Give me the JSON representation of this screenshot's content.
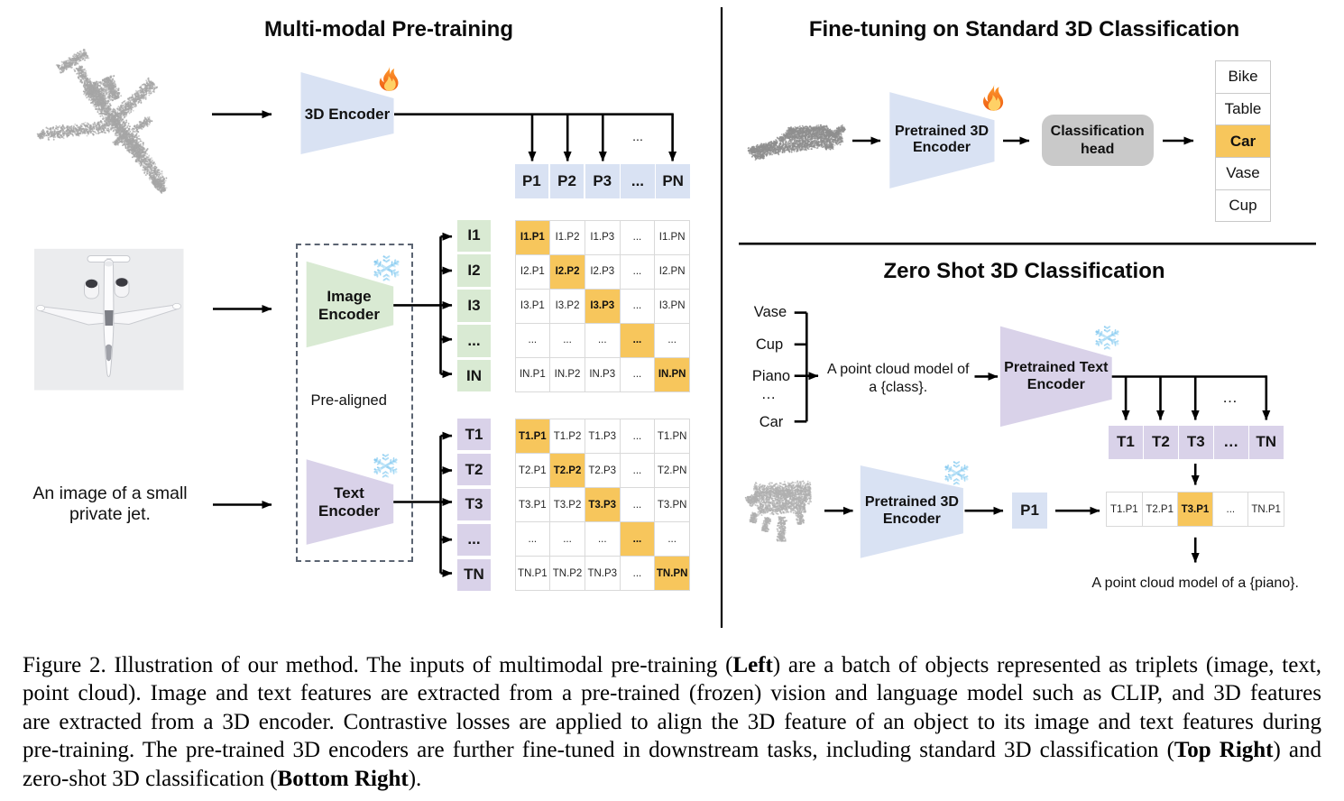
{
  "colors": {
    "blue": "#d9e2f3",
    "green": "#d9ead3",
    "purple": "#d9d2e9",
    "orange": "#f7c65c",
    "gray_box": "#c9c9c9",
    "line": "#000000",
    "grid_border": "#d9d9d9"
  },
  "panels": {
    "pretraining": {
      "title": "Multi-modal Pre-training",
      "encoder_3d_label": "3D Encoder",
      "image_encoder_label": "Image\nEncoder",
      "text_encoder_label": "Text\nEncoder",
      "prealigned_label": "Pre-aligned",
      "jet_text": "An image of a small\nprivate jet.",
      "ellipsis_top": "...",
      "p_row": [
        "P1",
        "P2",
        "P3",
        "...",
        "PN"
      ],
      "i_labels": [
        "I1",
        "I2",
        "I3",
        "...",
        "IN"
      ],
      "t_labels": [
        "T1",
        "T2",
        "T3",
        "...",
        "TN"
      ],
      "i_matrix": [
        [
          "I1.P1",
          "I1.P2",
          "I1.P3",
          "...",
          "I1.PN"
        ],
        [
          "I2.P1",
          "I2.P2",
          "I2.P3",
          "...",
          "I2.PN"
        ],
        [
          "I3.P1",
          "I3.P2",
          "I3.P3",
          "...",
          "I3.PN"
        ],
        [
          "...",
          "...",
          "...",
          "...",
          "..."
        ],
        [
          "IN.P1",
          "IN.P2",
          "IN.P3",
          "...",
          "IN.PN"
        ]
      ],
      "t_matrix": [
        [
          "T1.P1",
          "T1.P2",
          "T1.P3",
          "...",
          "T1.PN"
        ],
        [
          "T2.P1",
          "T2.P2",
          "T2.P3",
          "...",
          "T2.PN"
        ],
        [
          "T3.P1",
          "T3.P2",
          "T3.P3",
          "...",
          "T3.PN"
        ],
        [
          "...",
          "...",
          "...",
          "...",
          "..."
        ],
        [
          "TN.P1",
          "TN.P2",
          "TN.P3",
          "...",
          "TN.PN"
        ]
      ],
      "icons": {
        "trainable": "fire-emoji",
        "frozen": "snowflake-emoji"
      }
    },
    "finetune": {
      "title": "Fine-tuning on Standard 3D Classification",
      "encoder_label": "Pretrained 3D\nEncoder",
      "head_label": "Classification\nhead",
      "classes": [
        "Bike",
        "Table",
        "Car",
        "Vase",
        "Cup"
      ],
      "highlight_class": "Car",
      "highlight_index": 2
    },
    "zeroshot": {
      "title": "Zero Shot 3D Classification",
      "classes": [
        "Vase",
        "Cup",
        "Piano",
        "…",
        "Car"
      ],
      "prompt_text": "A point cloud model of\na {class}.",
      "text_encoder_label": "Pretrained Text\nEncoder",
      "encoder_3d_label": "Pretrained 3D\nEncoder",
      "p1_label": "P1",
      "t_row": [
        "T1",
        "T2",
        "T3",
        "…",
        "TN"
      ],
      "ellipsis_top": "…",
      "sim_row": [
        "T1.P1",
        "T2.P1",
        "T3.P1",
        "...",
        "TN.P1"
      ],
      "sim_highlight_index": 2,
      "result_text": "A point cloud model of a {piano}."
    }
  },
  "caption": {
    "lines": [
      [
        {
          "t": "Figure 2. Illustration of our method.  The inputs of multimodal pre-training ("
        },
        {
          "t": "Left",
          "b": 1
        },
        {
          "t": ") are a batch of objects represented as triplets (image, text,"
        }
      ],
      [
        {
          "t": "point cloud).  Image and text features are extracted from a pre-trained (frozen) vision and language model such as CLIP, and 3D features"
        }
      ],
      [
        {
          "t": "are extracted from a 3D encoder.  Contrastive losses are applied to align the 3D feature of an object to its image and text features during"
        }
      ],
      [
        {
          "t": "pre-training.  The pre-trained 3D encoders are further fine-tuned in downstream tasks, including standard 3D classification ("
        },
        {
          "t": "Top Right",
          "b": 1
        },
        {
          "t": ") and"
        }
      ],
      [
        {
          "t": "zero-shot 3D classification ("
        },
        {
          "t": "Bottom Right",
          "b": 1
        },
        {
          "t": ")."
        }
      ]
    ]
  }
}
